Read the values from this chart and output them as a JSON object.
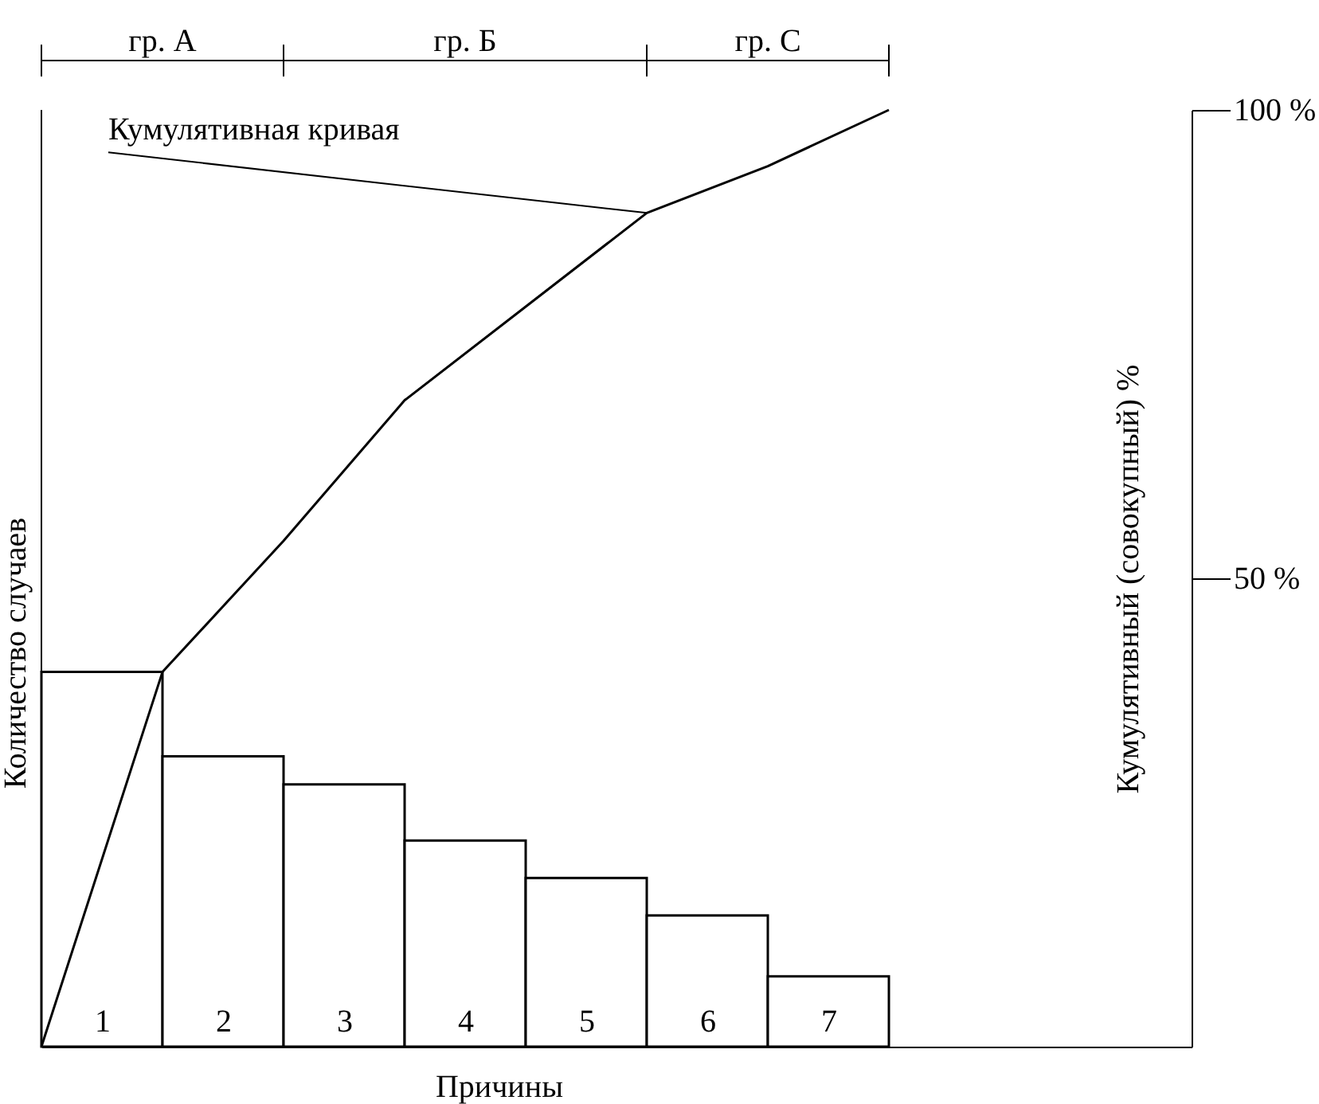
{
  "chart_data": {
    "type": "bar",
    "xlabel": "Причины",
    "ylabel": "Количество случаев",
    "y2label": "Кумулятивный (совокупный) %",
    "x": [
      0.5,
      1.5,
      2.5,
      3.5,
      4.5,
      5.5,
      6.5
    ],
    "series": [
      {
        "color": "#ffffff",
        "values": [
          40,
          31,
          28,
          22,
          18,
          14,
          7.5
        ]
      },
      {
        "type": "line",
        "color": "#000000",
        "x": [
          0,
          1,
          2,
          3,
          4,
          5,
          6,
          7
        ],
        "values": [
          0,
          40,
          54,
          69,
          79,
          89,
          94,
          100
        ]
      }
    ],
    "xlim": [
      0,
      9.5
    ],
    "xticks": [
      {
        "value": 0.5,
        "label": "1"
      },
      {
        "value": 1.5,
        "label": "2"
      },
      {
        "value": 2.5,
        "label": "3"
      },
      {
        "value": 3.5,
        "label": "4"
      },
      {
        "value": 4.5,
        "label": "5"
      },
      {
        "value": 5.5,
        "label": "6"
      },
      {
        "value": 6.5,
        "label": "7"
      }
    ],
    "ylim": [
      0,
      100
    ],
    "yticks": [
      {
        "value": 50,
        "label": "50 %"
      },
      {
        "value": 100,
        "label": "100 %"
      }
    ],
    "annotations": [
      "гр. А",
      "гр. Б",
      "гр. С",
      "Кумулятивная кривая"
    ],
    "grid": false
  }
}
